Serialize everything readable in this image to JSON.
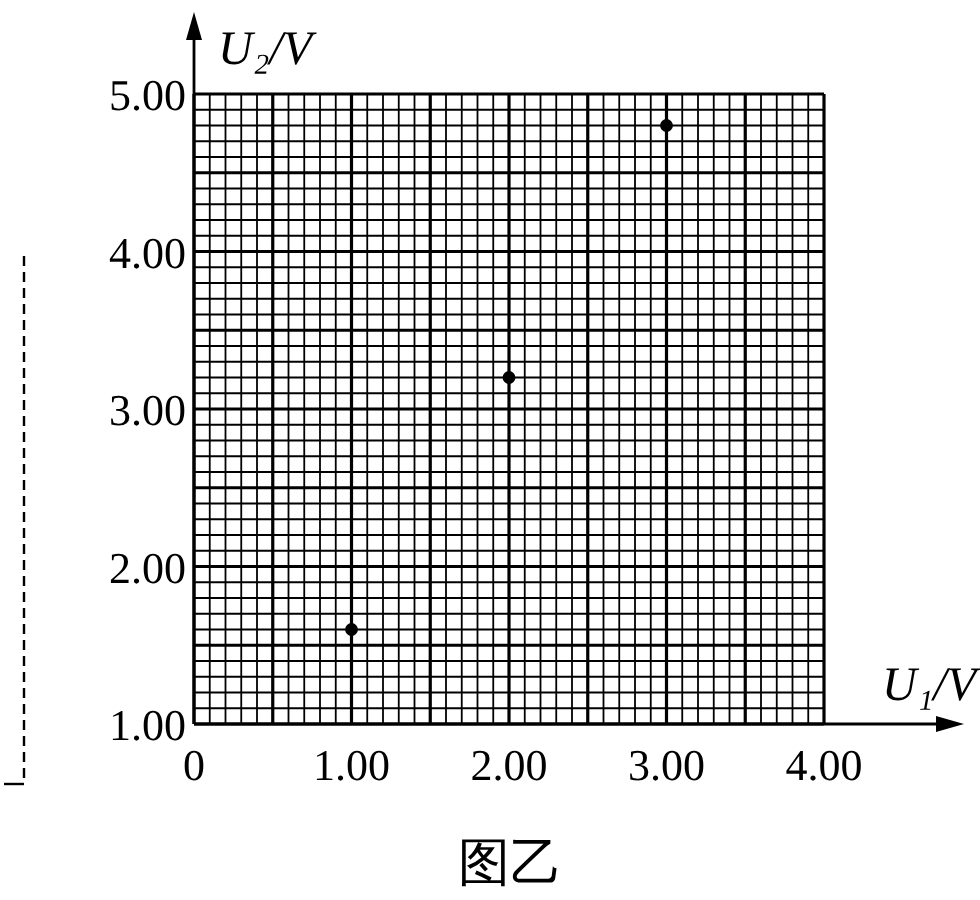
{
  "chart_data": {
    "type": "scatter",
    "xlabel": "U₁/V",
    "ylabel": "U₂/V",
    "annotations": [
      "图乙"
    ],
    "x": [
      1.0,
      2.0,
      3.0
    ],
    "series": [
      {
        "color": "#000000",
        "values": [
          1.6,
          3.2,
          4.8
        ]
      }
    ],
    "xlim": [
      0,
      4
    ],
    "ylim": [
      1,
      5
    ],
    "xticks": [
      {
        "value": 0,
        "label": "0"
      },
      {
        "value": 1,
        "label": "1.00"
      },
      {
        "value": 2,
        "label": "2.00"
      },
      {
        "value": 3,
        "label": "3.00"
      },
      {
        "value": 4,
        "label": "4.00"
      }
    ],
    "yticks": [
      {
        "value": 1,
        "label": "1.00"
      },
      {
        "value": 2,
        "label": "2.00"
      },
      {
        "value": 3,
        "label": "3.00"
      },
      {
        "value": 4,
        "label": "4.00"
      },
      {
        "value": 5,
        "label": "5.00"
      }
    ],
    "grid": true,
    "marker": "circle"
  }
}
